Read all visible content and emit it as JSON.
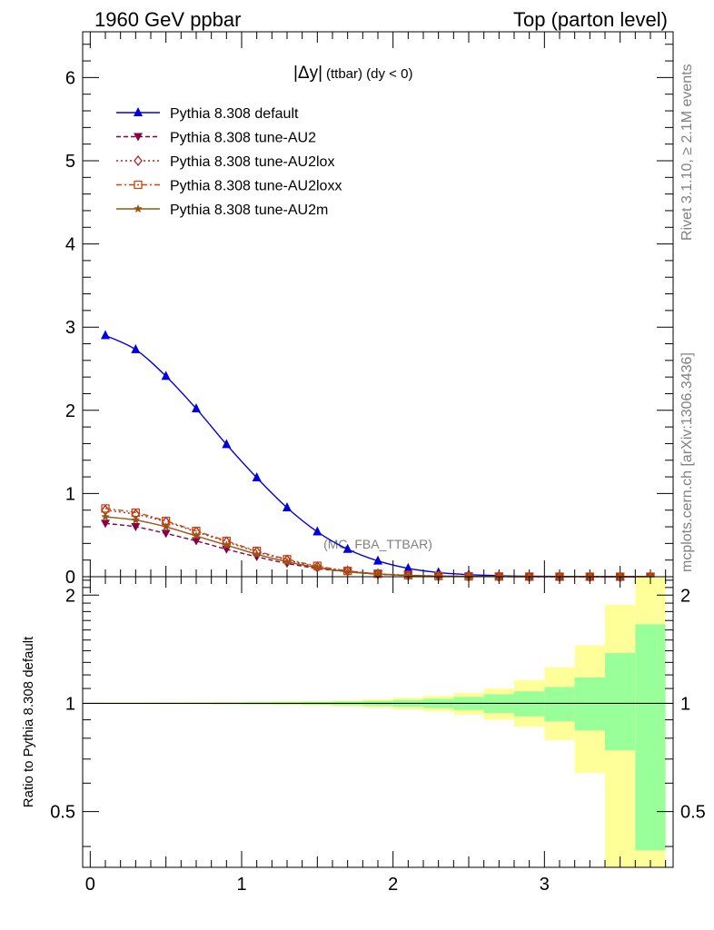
{
  "header": {
    "left": "1960 GeV ppbar",
    "right": "Top (parton level)"
  },
  "side_labels": {
    "rivet": "Rivet 3.1.10, ≥ 2.1M events",
    "mcplots": "mcplots.cern.ch [arXiv:1306.3436]"
  },
  "chart_data": [
    {
      "type": "line",
      "title": "|Δy| (ttbar) (dy < 0)",
      "title_main": "|Δy|",
      "title_sub": "(ttbar) (dy < 0)",
      "watermark": "(MC_FBA_TTBAR)",
      "xlim": [
        -0.05,
        3.85
      ],
      "ylim": [
        0,
        6.55
      ],
      "yticks": [
        0,
        1,
        2,
        3,
        4,
        5,
        6
      ],
      "ytick_labels": [
        "0",
        "1",
        "2",
        "3",
        "4",
        "5",
        "6"
      ],
      "legend_position": "top-left",
      "x": [
        0.1,
        0.3,
        0.5,
        0.7,
        0.9,
        1.1,
        1.3,
        1.5,
        1.7,
        1.9,
        2.1,
        2.3,
        2.5,
        2.7,
        2.9,
        3.1,
        3.3,
        3.5,
        3.7
      ],
      "series": [
        {
          "name": "Pythia 8.308 default",
          "color": "#0000dd",
          "marker": "triangle-up",
          "dash": "",
          "values": [
            2.9,
            2.73,
            2.41,
            2.02,
            1.59,
            1.19,
            0.83,
            0.54,
            0.33,
            0.19,
            0.1,
            0.05,
            0.025,
            0.012,
            0.006,
            0.003,
            0.0015,
            0.0008,
            0.0004
          ]
        },
        {
          "name": "Pythia 8.308 tune-AU2",
          "color": "#880044",
          "marker": "triangle-down",
          "dash": "5,3",
          "values": [
            0.64,
            0.6,
            0.52,
            0.43,
            0.33,
            0.24,
            0.16,
            0.1,
            0.06,
            0.03,
            0.015,
            0.007,
            0.003,
            0.0015,
            0.0008,
            0.0004,
            0.0002,
            0.0001,
            5e-05
          ]
        },
        {
          "name": "Pythia 8.308 tune-AU2lox",
          "color": "#aa2222",
          "marker": "diamond",
          "dash": "2,3",
          "values": [
            0.8,
            0.75,
            0.66,
            0.54,
            0.42,
            0.3,
            0.2,
            0.12,
            0.07,
            0.035,
            0.017,
            0.008,
            0.004,
            0.002,
            0.001,
            0.0005,
            0.0002,
            0.0001,
            5e-05
          ]
        },
        {
          "name": "Pythia 8.308 tune-AU2loxx",
          "color": "#cc4411",
          "marker": "square",
          "dash": "6,3,2,3",
          "values": [
            0.82,
            0.77,
            0.67,
            0.55,
            0.43,
            0.31,
            0.21,
            0.13,
            0.07,
            0.036,
            0.018,
            0.009,
            0.004,
            0.002,
            0.001,
            0.0005,
            0.0002,
            0.0001,
            5e-05
          ]
        },
        {
          "name": "Pythia 8.308 tune-AU2m",
          "color": "#995511",
          "marker": "star",
          "dash": "",
          "values": [
            0.72,
            0.68,
            0.6,
            0.49,
            0.38,
            0.27,
            0.18,
            0.11,
            0.06,
            0.032,
            0.016,
            0.008,
            0.004,
            0.002,
            0.001,
            0.0005,
            0.0002,
            0.0001,
            5e-05
          ]
        }
      ]
    },
    {
      "type": "area",
      "ylabel": "Ratio to Pythia 8.308 default",
      "xlim": [
        -0.05,
        3.85
      ],
      "ylim": [
        0.35,
        2.25
      ],
      "xticks": [
        0,
        1,
        2,
        3
      ],
      "xtick_labels": [
        "0",
        "1",
        "2",
        "3"
      ],
      "yticks": [
        0.5,
        1,
        2
      ],
      "ytick_labels": [
        "0.5",
        "1",
        "2"
      ],
      "reference_line": 1,
      "bins": [
        0.0,
        0.2,
        0.4,
        0.6,
        0.8,
        1.0,
        1.2,
        1.4,
        1.6,
        1.8,
        2.0,
        2.2,
        2.4,
        2.6,
        2.8,
        3.0,
        3.2,
        3.4,
        3.6,
        3.8
      ],
      "band_inner": {
        "color": "#99ff99",
        "low": [
          0.997,
          0.997,
          0.996,
          0.996,
          0.995,
          0.994,
          0.993,
          0.991,
          0.988,
          0.984,
          0.978,
          0.97,
          0.958,
          0.94,
          0.92,
          0.89,
          0.84,
          0.74,
          0.39
        ],
        "high": [
          1.003,
          1.003,
          1.004,
          1.004,
          1.005,
          1.006,
          1.007,
          1.009,
          1.012,
          1.016,
          1.022,
          1.03,
          1.042,
          1.06,
          1.08,
          1.11,
          1.18,
          1.38,
          1.66
        ]
      },
      "band_outer": {
        "color": "#ffff99",
        "low": [
          0.995,
          0.995,
          0.994,
          0.993,
          0.992,
          0.99,
          0.988,
          0.985,
          0.98,
          0.973,
          0.962,
          0.95,
          0.93,
          0.9,
          0.86,
          0.79,
          0.64,
          0.35,
          0.35
        ],
        "high": [
          1.005,
          1.005,
          1.006,
          1.007,
          1.008,
          1.01,
          1.012,
          1.015,
          1.02,
          1.027,
          1.038,
          1.05,
          1.07,
          1.1,
          1.16,
          1.26,
          1.45,
          1.88,
          2.24
        ]
      }
    }
  ]
}
